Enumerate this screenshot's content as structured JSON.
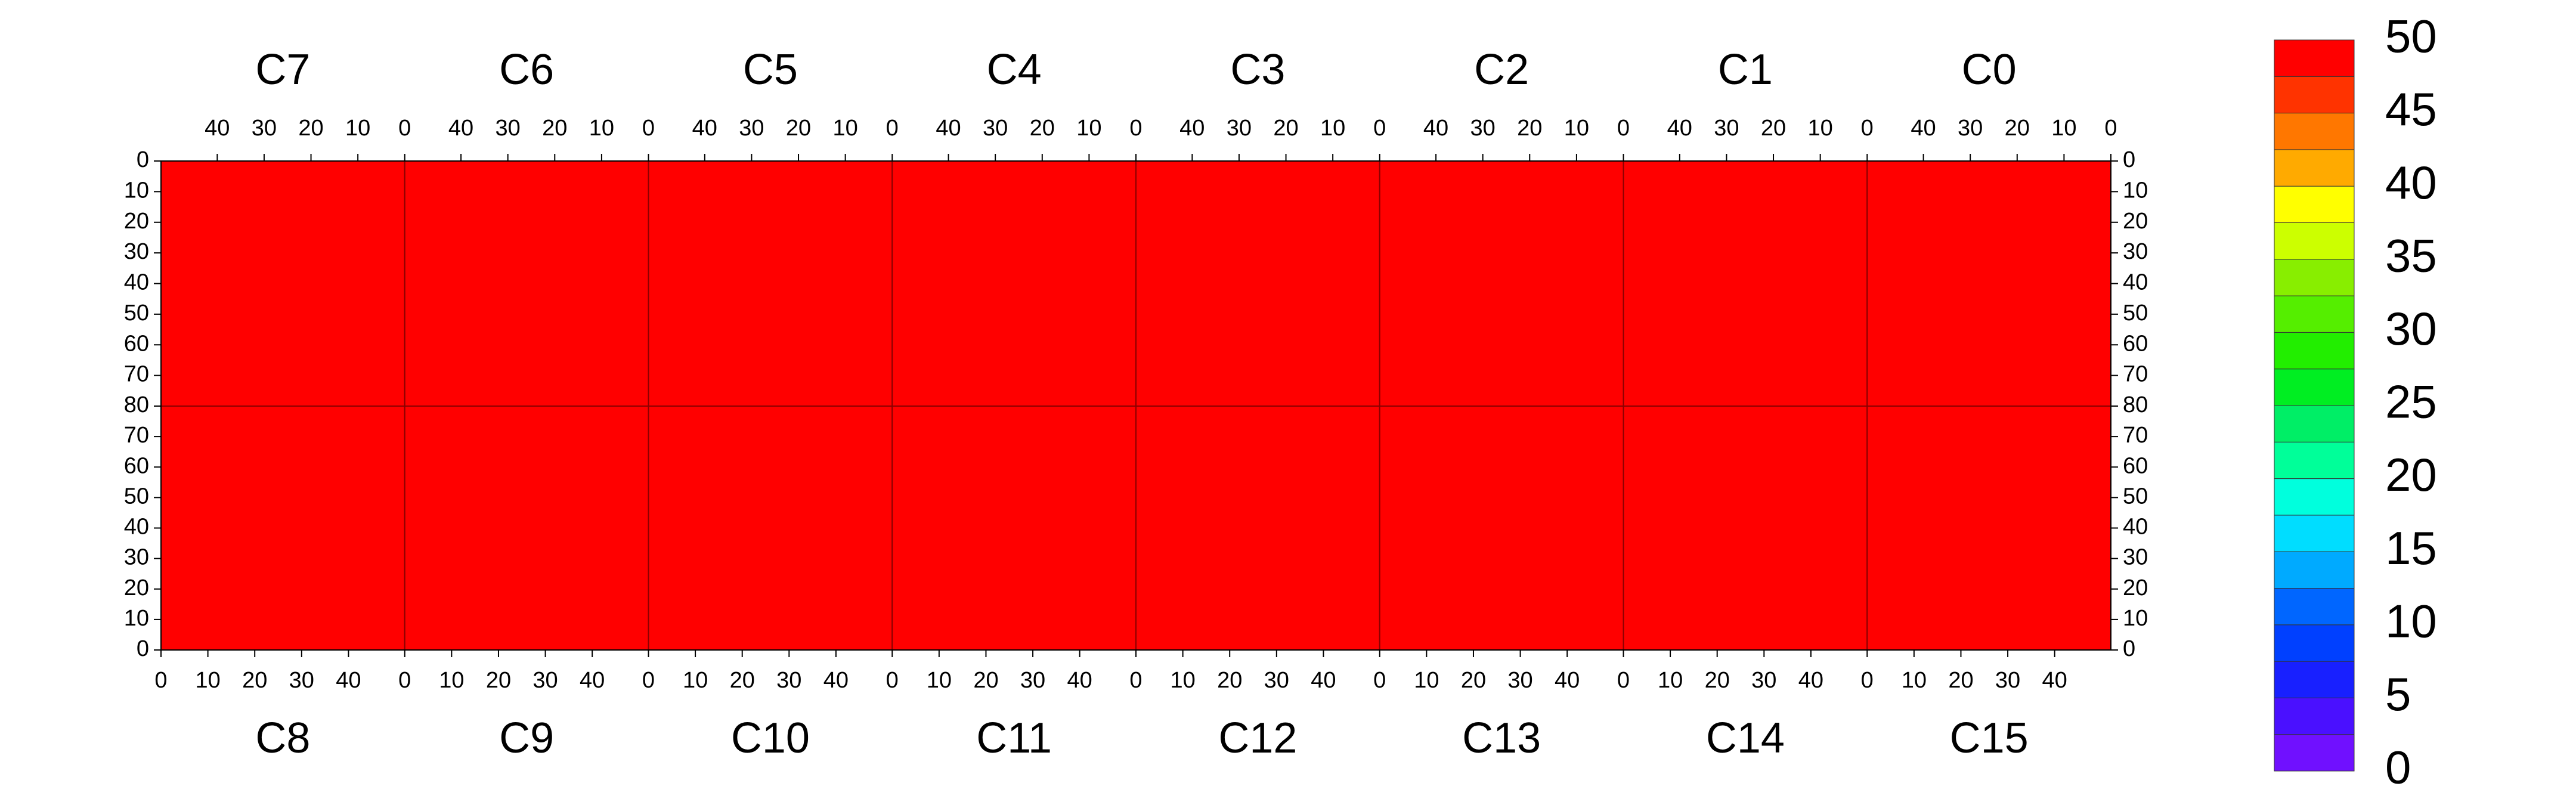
{
  "chart_data": {
    "type": "heatmap",
    "panels": [
      {
        "name": "C7",
        "value": 48
      },
      {
        "name": "C6",
        "value": 48
      },
      {
        "name": "C5",
        "value": 48
      },
      {
        "name": "C4",
        "value": 48
      },
      {
        "name": "C3",
        "value": 48
      },
      {
        "name": "C2",
        "value": 48
      },
      {
        "name": "C1",
        "value": 48
      },
      {
        "name": "C0",
        "value": 48
      },
      {
        "name": "C8",
        "value": 48
      },
      {
        "name": "C9",
        "value": 48
      },
      {
        "name": "C10",
        "value": 48
      },
      {
        "name": "C11",
        "value": 48
      },
      {
        "name": "C12",
        "value": 48
      },
      {
        "name": "C13",
        "value": 48
      },
      {
        "name": "C14",
        "value": 48
      },
      {
        "name": "C15",
        "value": 48
      }
    ],
    "xlim": [
      0,
      52
    ],
    "xticks": [
      0,
      10,
      20,
      30,
      40
    ],
    "ylim": [
      0,
      80
    ],
    "yticks": [
      0,
      10,
      20,
      30,
      40,
      50,
      60,
      70,
      80
    ],
    "zlim": [
      0,
      50
    ],
    "zticks": [
      0,
      5,
      10,
      15,
      20,
      25,
      30,
      35,
      40,
      45,
      50
    ],
    "levels": [
      0,
      2.5,
      5,
      7.5,
      10,
      12.5,
      15,
      17.5,
      20,
      22.5,
      25,
      27.5,
      30,
      32.5,
      35,
      37.5,
      40,
      42.5,
      45,
      47.5,
      50
    ],
    "colors": [
      "#7010ff",
      "#4a10ff",
      "#1820ff",
      "#0040ff",
      "#0066ff",
      "#00aaff",
      "#00ddff",
      "#00ffdd",
      "#00ff99",
      "#00ee66",
      "#00ee22",
      "#22ee00",
      "#55ee00",
      "#88ee00",
      "#ccff00",
      "#ffff00",
      "#ffaa00",
      "#ff7700",
      "#ff3300",
      "#ff0000"
    ]
  }
}
